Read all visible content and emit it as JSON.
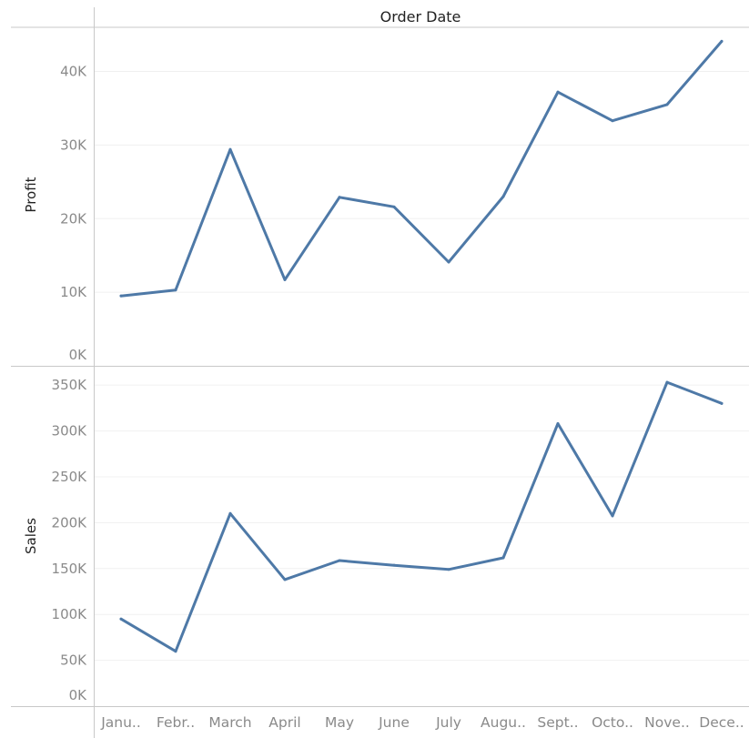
{
  "header": {
    "title": "Order Date"
  },
  "colors": {
    "line": "#4e79a7",
    "grid": "#f0f0f0",
    "border": "#c8c8c8",
    "text": "#222222",
    "tick_text": "#8a8a8a"
  },
  "chart_data": [
    {
      "type": "line",
      "ylabel": "Profit",
      "xlabel": "",
      "title": "",
      "ylim": [
        0,
        46000
      ],
      "grid": true,
      "legend": "none",
      "categories": [
        "January",
        "February",
        "March",
        "April",
        "May",
        "June",
        "July",
        "August",
        "September",
        "October",
        "November",
        "December"
      ],
      "category_labels": [
        "Janu..",
        "Febr..",
        "March",
        "April",
        "May",
        "June",
        "July",
        "Augu..",
        "Sept..",
        "Octo..",
        "Nove..",
        "Dece.."
      ],
      "yticks": [
        0,
        10000,
        20000,
        30000,
        40000
      ],
      "ytick_labels": [
        "0K",
        "10K",
        "20K",
        "30K",
        "40K"
      ],
      "values": [
        9500,
        10300,
        29400,
        11700,
        22900,
        21600,
        14100,
        23000,
        37200,
        33300,
        35500,
        44100
      ]
    },
    {
      "type": "line",
      "ylabel": "Sales",
      "xlabel": "",
      "title": "",
      "ylim": [
        0,
        370000
      ],
      "grid": true,
      "legend": "none",
      "categories": [
        "January",
        "February",
        "March",
        "April",
        "May",
        "June",
        "July",
        "August",
        "September",
        "October",
        "November",
        "December"
      ],
      "category_labels": [
        "Janu..",
        "Febr..",
        "March",
        "April",
        "May",
        "June",
        "July",
        "Augu..",
        "Sept..",
        "Octo..",
        "Nove..",
        "Dece.."
      ],
      "yticks": [
        0,
        50000,
        100000,
        150000,
        200000,
        250000,
        300000,
        350000
      ],
      "ytick_labels": [
        "0K",
        "50K",
        "100K",
        "150K",
        "200K",
        "250K",
        "300K",
        "350K"
      ],
      "values": [
        95000,
        59800,
        210000,
        138000,
        158700,
        153600,
        149000,
        161700,
        308000,
        207400,
        353000,
        330000
      ]
    }
  ]
}
